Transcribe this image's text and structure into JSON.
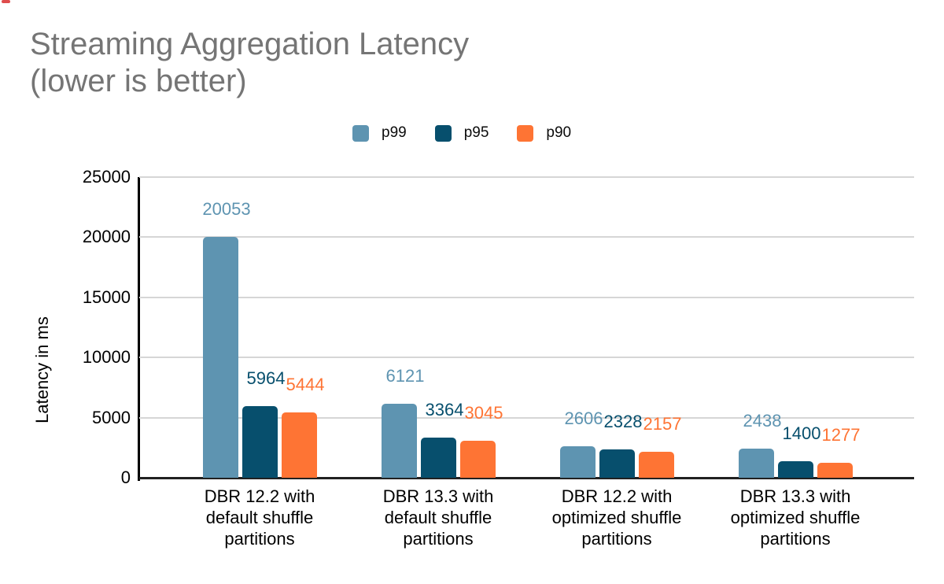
{
  "title": {
    "line1": "Streaming Aggregation Latency",
    "line2": "(lower is better)"
  },
  "legend": [
    {
      "label": "p99",
      "color": "#5e94b1"
    },
    {
      "label": "p95",
      "color": "#074f6d"
    },
    {
      "label": "p90",
      "color": "#fe7434"
    }
  ],
  "y_axis": {
    "label": "Latency in ms",
    "tick_labels": [
      "0",
      "5000",
      "10000",
      "15000",
      "20000",
      "25000"
    ]
  },
  "chart_data": {
    "type": "bar",
    "title": "Streaming Aggregation Latency (lower is better)",
    "categories": [
      "DBR 12.2 with default shuffle partitions",
      "DBR 13.3 with default shuffle partitions",
      "DBR 12.2 with optimized shuffle partitions",
      "DBR 13.3 with optimized shuffle partitions"
    ],
    "series": [
      {
        "name": "p99",
        "color": "#5e94b1",
        "values": [
          20053,
          6121,
          2606,
          2438
        ]
      },
      {
        "name": "p95",
        "color": "#074f6d",
        "values": [
          5964,
          3364,
          2328,
          1400
        ]
      },
      {
        "name": "p90",
        "color": "#fe7434",
        "values": [
          5444,
          3045,
          2157,
          1277
        ]
      }
    ],
    "xlabel": "",
    "ylabel": "Latency in ms",
    "ylim": [
      0,
      25000
    ],
    "ytick_step": 5000,
    "grid": true,
    "legend_position": "top",
    "data_labels": true
  },
  "decor": {
    "corner_mark_color": "#df4c4c"
  }
}
